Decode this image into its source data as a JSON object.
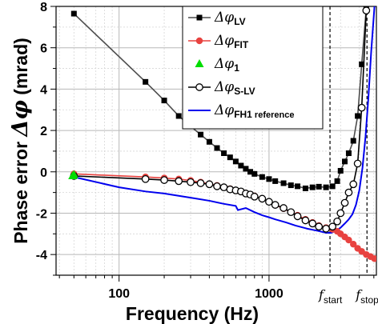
{
  "chart_data": {
    "type": "line",
    "xlabel": "Frequency (Hz)",
    "ylabel_prefix": "Phase error ",
    "ylabel_symbol": "Δφ",
    "ylabel_unit": " (mrad)",
    "xscale": "log",
    "xlim": [
      38,
      5200
    ],
    "ylim": [
      -5,
      8
    ],
    "xticks": [
      {
        "value": 100,
        "label": "100"
      },
      {
        "value": 1000,
        "label": "1000"
      }
    ],
    "yticks": [
      {
        "value": -4,
        "label": "-4"
      },
      {
        "value": -2,
        "label": "-2"
      },
      {
        "value": 0,
        "label": "0"
      },
      {
        "value": 2,
        "label": "2"
      },
      {
        "value": 4,
        "label": "4"
      },
      {
        "value": 6,
        "label": "6"
      },
      {
        "value": 8,
        "label": "8"
      }
    ],
    "grid": true,
    "legend_position": "top-right",
    "annotations": [
      {
        "x": 2550,
        "symbol": "f",
        "subscript": "start"
      },
      {
        "x": 4500,
        "symbol": "f",
        "subscript": "stop"
      }
    ],
    "series": [
      {
        "name_symbol": "Δφ",
        "name_sub": "LV",
        "name_sub_extra": "",
        "color": "#000000",
        "marker": "square",
        "line_color": "#4d4d4d",
        "x": [
          50,
          150,
          200,
          250,
          300,
          350,
          400,
          450,
          500,
          550,
          600,
          650,
          700,
          750,
          800,
          900,
          1000,
          1100,
          1250,
          1400,
          1550,
          1750,
          1950,
          2150,
          2400,
          2650,
          2850,
          3000,
          3200,
          3400,
          3650,
          3900,
          4150,
          4450
        ],
        "y": [
          7.65,
          4.35,
          3.45,
          2.7,
          2.2,
          1.8,
          1.45,
          1.15,
          0.9,
          0.7,
          0.5,
          0.3,
          0.15,
          0.0,
          -0.1,
          -0.25,
          -0.35,
          -0.45,
          -0.55,
          -0.65,
          -0.7,
          -0.8,
          -0.75,
          -0.72,
          -0.75,
          -0.7,
          -0.45,
          0.05,
          0.5,
          0.9,
          1.5,
          2.7,
          5.2,
          7.9
        ]
      },
      {
        "name_symbol": "Δφ",
        "name_sub": "FIT",
        "name_sub_extra": "",
        "color": "#e8423f",
        "marker": "circle",
        "line_color": "#e8423f",
        "x": [
          50,
          150,
          200,
          250,
          300,
          350,
          400,
          450,
          500,
          550,
          600,
          650,
          700,
          750,
          800,
          900,
          1000,
          1100,
          1250,
          1400,
          1550,
          1750,
          1950,
          2150,
          2400,
          2650,
          2850,
          3000,
          3200,
          3400,
          3650,
          3900,
          4150,
          4450,
          4750,
          5050
        ],
        "y": [
          -0.1,
          -0.25,
          -0.3,
          -0.35,
          -0.42,
          -0.5,
          -0.58,
          -0.66,
          -0.75,
          -0.82,
          -0.9,
          -0.97,
          -1.03,
          -1.1,
          -1.17,
          -1.3,
          -1.45,
          -1.6,
          -1.78,
          -1.95,
          -2.1,
          -2.3,
          -2.45,
          -2.6,
          -2.7,
          -2.78,
          -2.88,
          -3.0,
          -3.15,
          -3.3,
          -3.5,
          -3.7,
          -3.85,
          -4.0,
          -4.1,
          -4.2
        ]
      },
      {
        "name_symbol": "Δφ",
        "name_sub": "1",
        "name_sub_extra": "",
        "color": "#00dd00",
        "marker": "triangle",
        "line_color": "none",
        "x": [
          49,
          50
        ],
        "y": [
          -0.2,
          -0.15
        ]
      },
      {
        "name_symbol": "Δφ",
        "name_sub": "S-LV",
        "name_sub_extra": "",
        "color": "#000000",
        "marker": "circle-open",
        "line_color": "#000000",
        "x": [
          50,
          150,
          200,
          250,
          300,
          350,
          400,
          450,
          500,
          550,
          600,
          650,
          700,
          750,
          800,
          900,
          1000,
          1100,
          1250,
          1400,
          1550,
          1750,
          1950,
          2150,
          2400,
          2650,
          2850,
          3000,
          3200,
          3400,
          3650,
          3900,
          4150,
          4450
        ],
        "y": [
          -0.2,
          -0.35,
          -0.4,
          -0.45,
          -0.5,
          -0.55,
          -0.6,
          -0.7,
          -0.75,
          -0.85,
          -0.9,
          -0.95,
          -1.05,
          -1.1,
          -1.2,
          -1.3,
          -1.45,
          -1.6,
          -1.75,
          -1.95,
          -2.15,
          -2.35,
          -2.5,
          -2.65,
          -2.75,
          -2.65,
          -2.4,
          -2.0,
          -1.5,
          -1.0,
          -0.6,
          0.4,
          3.1,
          7.8
        ]
      },
      {
        "name_symbol": "Δφ",
        "name_sub": "FH1",
        "name_sub_extra": " reference",
        "color": "#0000ee",
        "marker": "none",
        "line_color": "#0000ee",
        "x": [
          50,
          100,
          150,
          200,
          300,
          400,
          500,
          600,
          620,
          700,
          800,
          900,
          1000,
          1100,
          1300,
          1500,
          1800,
          2100,
          2400,
          2600,
          2800,
          3000,
          3200,
          3400,
          3600,
          3800,
          4000,
          4200,
          4400,
          4600,
          4800,
          5050
        ],
        "y": [
          -0.25,
          -0.75,
          -0.95,
          -1.05,
          -1.25,
          -1.4,
          -1.55,
          -1.65,
          -1.85,
          -1.75,
          -1.95,
          -2.1,
          -2.2,
          -2.3,
          -2.45,
          -2.6,
          -2.75,
          -2.85,
          -2.95,
          -2.95,
          -2.85,
          -2.7,
          -2.5,
          -2.3,
          -2.05,
          -1.6,
          -0.9,
          0.2,
          1.7,
          3.6,
          5.8,
          8.0
        ]
      }
    ]
  }
}
